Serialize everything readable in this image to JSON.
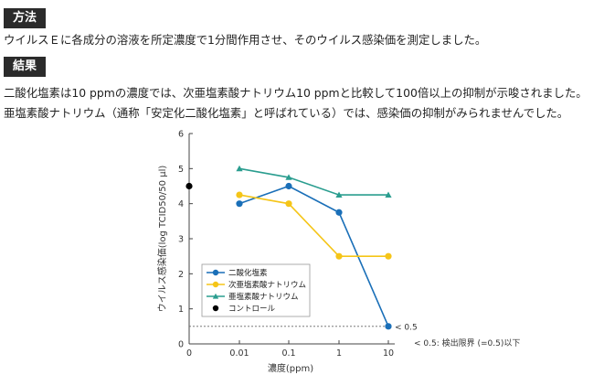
{
  "section1": {
    "heading": "方法",
    "text": "ウイルスＥに各成分の溶液を所定濃度で1分間作用させ、そのウイルス感染価を測定しました。"
  },
  "section2": {
    "heading": "結果",
    "lines": [
      "二酸化塩素は10 ppmの濃度では、次亜塩素酸ナトリウム10 ppmと比較して100倍以上の抑制が示唆されました。",
      "亜塩素酸ナトリウム（通称「安定化二酸化塩素」と呼ばれている）では、感染価の抑制がみられませんでした。"
    ]
  },
  "chart_data": {
    "type": "line",
    "categories": [
      "0",
      "0.01",
      "0.1",
      "1",
      "10"
    ],
    "xlabel": "濃度(ppm)",
    "ylabel": "ウイルス感染価(log TCID50/50 μl)",
    "ylim": [
      0,
      6
    ],
    "yticks": [
      "0",
      "1",
      "2",
      "3",
      "4",
      "5",
      "6"
    ],
    "grid": false,
    "legend_position": "bottom-left",
    "series": [
      {
        "name": "二酸化塩素",
        "color": "#1a6fb8",
        "marker": "circle",
        "values": [
          null,
          4.0,
          4.5,
          3.75,
          0.5
        ]
      },
      {
        "name": "次亜塩素酸ナトリウム",
        "color": "#f5c518",
        "marker": "circle",
        "values": [
          null,
          4.25,
          4.0,
          2.5,
          2.5
        ]
      },
      {
        "name": "亜塩素酸ナトリウム",
        "color": "#2a9d8f",
        "marker": "triangle",
        "values": [
          null,
          5.0,
          4.75,
          4.25,
          4.25
        ]
      },
      {
        "name": "コントロール",
        "color": "#000000",
        "marker": "circle",
        "values": [
          4.5,
          null,
          null,
          null,
          null
        ]
      }
    ],
    "detection_limit": {
      "value": 0.5,
      "point_label": "< 0.5",
      "note": "< 0.5: 検出限界 (=0.5)以下"
    }
  }
}
